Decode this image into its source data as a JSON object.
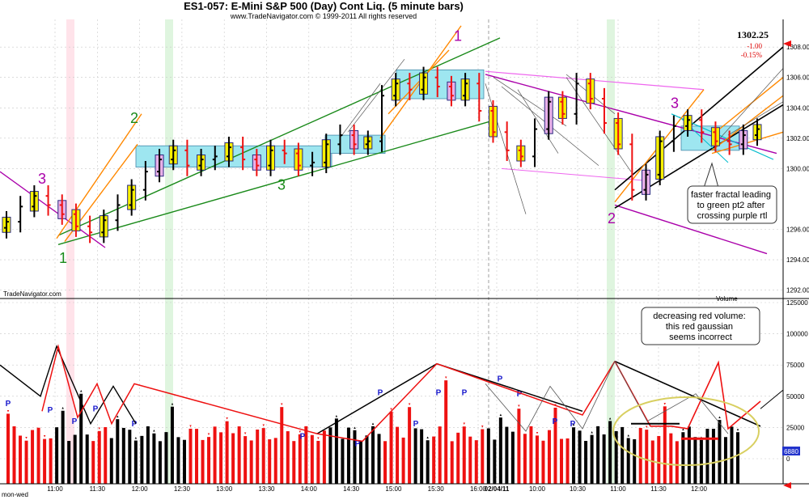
{
  "header": {
    "title": "ES1-057:  E-Mini S&P 500 (Day) Cont Liq.  (5 minute bars)",
    "subtitle": "www.TradeNavigator.com © 1999-2011 All rights reserved",
    "watermark": "TradeNavigator.com"
  },
  "quote": {
    "last": "1302.25",
    "change": "-1.00",
    "pct": "-0.15%"
  },
  "volume_title": "Volume",
  "volume_badge": "6880",
  "day_label": "mon-wed",
  "colors": {
    "up": "#000000",
    "down": "#ee1111",
    "yellow": "#f8f000",
    "pink": "#e8b0e8",
    "cyan_box": "#9ee6f0",
    "green": "#1a8a1a",
    "orange": "#ff8800",
    "magenta": "#aa00aa",
    "light_magenta": "#ee66ee",
    "blue_marker": "#1a1acc",
    "grid": "#c8c8c8"
  },
  "chart_data": [
    {
      "type": "candlestick",
      "title": "",
      "ylabel": "",
      "y_ticks": [
        "1308.00",
        "1306.00",
        "1304.00",
        "1302.00",
        "1300.00",
        "1296.00",
        "1294.00",
        "1292.00"
      ],
      "ylim": [
        1291.5,
        1309.5
      ],
      "x_ticks": [
        "11:00",
        "11:30",
        "12:00",
        "12:30",
        "13:00",
        "13:30",
        "14:00",
        "14:30",
        "15:00",
        "15:30",
        "16:00",
        "02/04/11",
        "10:00",
        "10:30",
        "11:00",
        "11:30",
        "12:00"
      ],
      "bars_approx_close": [
        1296.5,
        1297.5,
        1298.2,
        1297.6,
        1297.0,
        1296.2,
        1295.8,
        1296.6,
        1297.6,
        1298.6,
        1299.8,
        1300.6,
        1301.2,
        1300.2,
        1300.6,
        1300.8,
        1301.4,
        1300.6,
        1300.2,
        1301.2,
        1301.0,
        1300.2,
        1300.4,
        1301.6,
        1302.2,
        1301.6,
        1301.8,
        1304.8,
        1305.6,
        1305.2,
        1306.0,
        1305.4,
        1304.8,
        1305.6,
        1303.8,
        1302.4,
        1301.2,
        1300.8,
        1302.6,
        1304.4,
        1303.6,
        1305.6,
        1304.6,
        1303.0,
        1301.6,
        1298.6,
        1299.6,
        1301.8,
        1302.8,
        1303.2,
        1302.4,
        1301.8,
        1301.6,
        1302.2,
        1302.6
      ],
      "labels": [
        {
          "text": "1",
          "color": "#1a8a1a"
        },
        {
          "text": "2",
          "color": "#1a8a1a"
        },
        {
          "text": "3",
          "color": "#1a8a1a"
        },
        {
          "text": "1",
          "color": "#aa00aa"
        },
        {
          "text": "2",
          "color": "#aa00aa"
        },
        {
          "text": "3",
          "color": "#aa00aa"
        },
        {
          "text": "3",
          "color": "#aa00aa"
        }
      ],
      "annotation": "faster fractal leading\nto green pt2 after\ncrossing purple rtl",
      "grid": true
    },
    {
      "type": "bar",
      "title": "",
      "y_ticks": [
        "125000",
        "100000",
        "75000",
        "50000",
        "25000",
        "0"
      ],
      "ylim": [
        0,
        125000
      ],
      "annotation": "decreasing red volume:\nthis red gaussian\nseems incorrect",
      "marker_label": "P",
      "grid": true
    }
  ]
}
